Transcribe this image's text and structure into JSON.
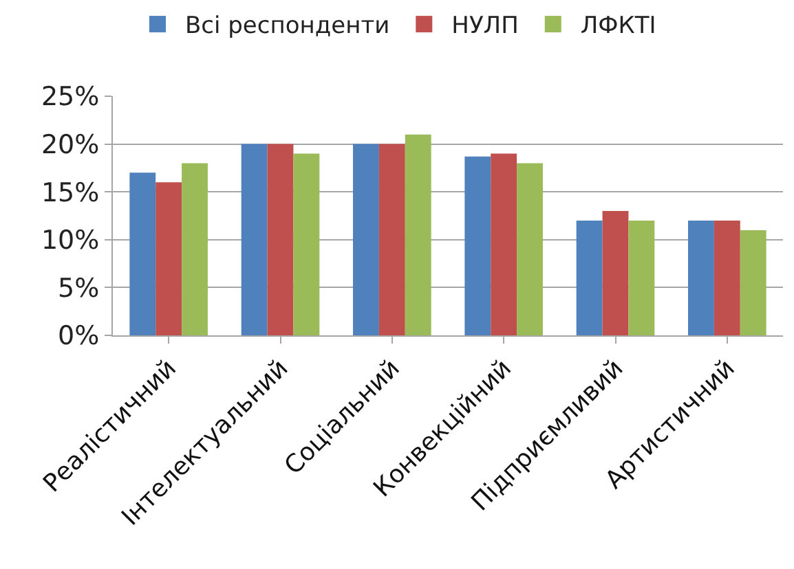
{
  "chart_data": {
    "type": "bar",
    "categories": [
      "Реалістичний",
      "Інтелектуальний",
      "Соціальний",
      "Конвекційний",
      "Підприємливий",
      "Артистичний"
    ],
    "series": [
      {
        "name": "Всі респонденти",
        "color": "#4f81bd",
        "values": [
          17,
          20,
          20,
          18.7,
          12,
          12
        ]
      },
      {
        "name": "НУЛП",
        "color": "#c0504d",
        "values": [
          16,
          20,
          20,
          19,
          13,
          12
        ]
      },
      {
        "name": "ЛФКТІ",
        "color": "#9bbb59",
        "values": [
          18,
          19,
          21,
          18,
          12,
          11
        ]
      }
    ],
    "ylim": [
      0,
      25
    ],
    "yticks": [
      {
        "value": 0,
        "label": "0%"
      },
      {
        "value": 5,
        "label": "5%"
      },
      {
        "value": 10,
        "label": "10%"
      },
      {
        "value": 15,
        "label": "15%"
      },
      {
        "value": 20,
        "label": "20%"
      },
      {
        "value": 25,
        "label": "25%"
      }
    ],
    "grid": "y",
    "legend": "top"
  }
}
